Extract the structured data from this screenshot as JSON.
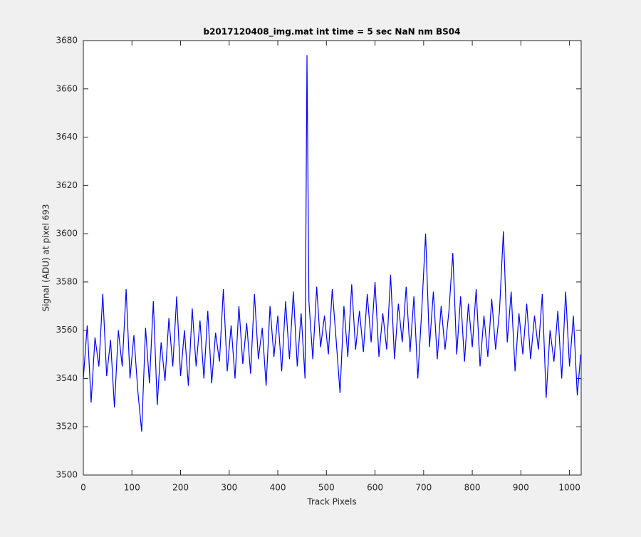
{
  "chart_data": {
    "type": "line",
    "title": "b2017120408_img.mat int time = 5 sec  NaN nm BS04",
    "xlabel": "Track Pixels",
    "ylabel": "Signal (ADU) at pixel 693",
    "x": [
      0,
      8,
      16,
      24,
      32,
      40,
      48,
      56,
      64,
      72,
      80,
      88,
      96,
      104,
      112,
      120,
      128,
      136,
      144,
      152,
      160,
      168,
      176,
      184,
      192,
      200,
      208,
      216,
      224,
      232,
      240,
      248,
      256,
      264,
      272,
      280,
      288,
      296,
      304,
      312,
      320,
      328,
      336,
      344,
      352,
      360,
      368,
      376,
      384,
      392,
      400,
      408,
      416,
      424,
      432,
      440,
      448,
      456,
      460,
      464,
      472,
      480,
      488,
      496,
      504,
      512,
      520,
      528,
      536,
      544,
      552,
      560,
      568,
      576,
      584,
      592,
      600,
      608,
      616,
      624,
      632,
      640,
      648,
      656,
      664,
      672,
      680,
      688,
      696,
      704,
      712,
      720,
      728,
      736,
      744,
      752,
      760,
      768,
      776,
      784,
      792,
      800,
      808,
      816,
      824,
      832,
      840,
      848,
      856,
      864,
      872,
      880,
      888,
      896,
      904,
      912,
      920,
      928,
      936,
      944,
      952,
      960,
      968,
      976,
      984,
      992,
      1000,
      1008,
      1016,
      1023
    ],
    "series": [
      {
        "color": "#0000ff",
        "values": [
          3540,
          3562,
          3530,
          3557,
          3545,
          3575,
          3541,
          3556,
          3528,
          3560,
          3545,
          3577,
          3540,
          3558,
          3535,
          3518,
          3561,
          3538,
          3572,
          3529,
          3555,
          3539,
          3565,
          3545,
          3574,
          3541,
          3560,
          3537,
          3569,
          3545,
          3564,
          3540,
          3568,
          3538,
          3559,
          3547,
          3577,
          3543,
          3562,
          3540,
          3570,
          3546,
          3563,
          3542,
          3575,
          3548,
          3561,
          3537,
          3570,
          3549,
          3566,
          3543,
          3572,
          3548,
          3576,
          3545,
          3567,
          3540,
          3674,
          3572,
          3548,
          3578,
          3553,
          3566,
          3550,
          3577,
          3556,
          3534,
          3570,
          3549,
          3579,
          3552,
          3568,
          3551,
          3575,
          3555,
          3580,
          3549,
          3567,
          3552,
          3583,
          3548,
          3571,
          3555,
          3578,
          3551,
          3574,
          3540,
          3568,
          3600,
          3553,
          3576,
          3548,
          3570,
          3552,
          3568,
          3592,
          3550,
          3574,
          3547,
          3571,
          3553,
          3577,
          3545,
          3566,
          3549,
          3573,
          3552,
          3568,
          3601,
          3555,
          3576,
          3543,
          3567,
          3550,
          3571,
          3548,
          3566,
          3552,
          3575,
          3532,
          3560,
          3547,
          3568,
          3540,
          3576,
          3545,
          3566,
          3533,
          3550
        ]
      }
    ],
    "xlim": [
      0,
      1024
    ],
    "ylim": [
      3500,
      3680
    ],
    "xticks": [
      0,
      100,
      200,
      300,
      400,
      500,
      600,
      700,
      800,
      900,
      1000
    ],
    "yticks": [
      3500,
      3520,
      3540,
      3560,
      3580,
      3600,
      3620,
      3640,
      3660,
      3680
    ],
    "grid": false
  }
}
